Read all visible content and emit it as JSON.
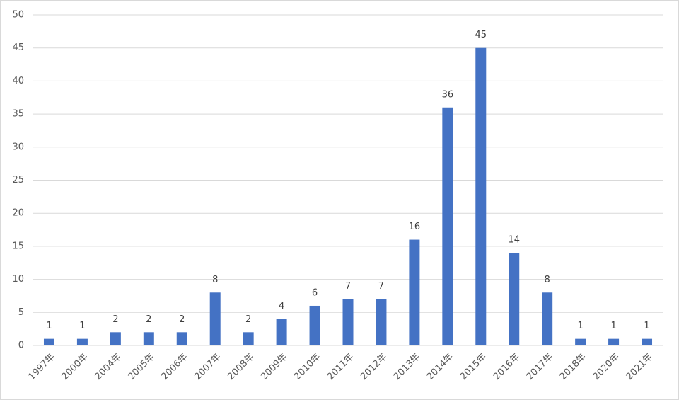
{
  "chart_data": {
    "type": "bar",
    "categories": [
      "1997年",
      "2000年",
      "2004年",
      "2005年",
      "2006年",
      "2007年",
      "2008年",
      "2009年",
      "2010年",
      "2011年",
      "2012年",
      "2013年",
      "2014年",
      "2015年",
      "2016年",
      "2017年",
      "2018年",
      "2020年",
      "2021年"
    ],
    "values": [
      1,
      1,
      2,
      2,
      2,
      8,
      2,
      4,
      6,
      7,
      7,
      16,
      36,
      45,
      14,
      8,
      1,
      1,
      1
    ],
    "color": "#4472c4",
    "ylim": [
      0,
      50
    ],
    "yticks": [
      0,
      5,
      10,
      15,
      20,
      25,
      30,
      35,
      40,
      45,
      50
    ],
    "grid": true
  }
}
